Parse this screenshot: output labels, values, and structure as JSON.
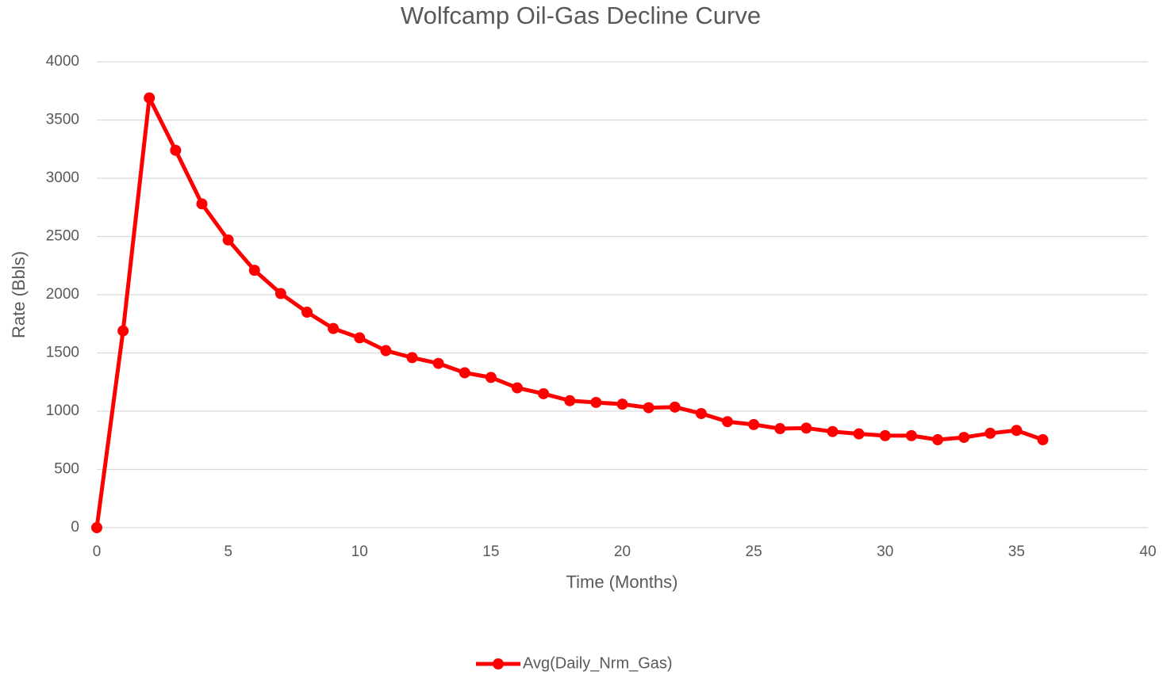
{
  "chart_data": {
    "type": "line",
    "title": "Wolfcamp Oil-Gas Decline Curve",
    "x_label": "Time (Months)",
    "y_label": "Rate (Bbls)",
    "x": [
      0,
      1,
      2,
      3,
      4,
      5,
      6,
      7,
      8,
      9,
      10,
      11,
      12,
      13,
      14,
      15,
      16,
      17,
      18,
      19,
      20,
      21,
      22,
      23,
      24,
      25,
      26,
      27,
      28,
      29,
      30,
      31,
      32,
      33,
      34,
      35,
      36
    ],
    "series": [
      {
        "name": "Avg(Daily_Nrm_Gas)",
        "color": "#ff0000",
        "values": [
          0,
          1690,
          3690,
          3240,
          2780,
          2470,
          2210,
          2010,
          1850,
          1710,
          1630,
          1520,
          1460,
          1410,
          1330,
          1290,
          1200,
          1150,
          1090,
          1075,
          1060,
          1030,
          1035,
          980,
          910,
          885,
          850,
          855,
          825,
          805,
          790,
          790,
          755,
          775,
          810,
          835,
          755
        ]
      }
    ],
    "xlim": [
      0,
      40
    ],
    "xticks": [
      0,
      5,
      10,
      15,
      20,
      25,
      30,
      35,
      40
    ],
    "ylim": [
      0,
      4000
    ],
    "yticks": [
      0,
      500,
      1000,
      1500,
      2000,
      2500,
      3000,
      3500,
      4000
    ],
    "grid": true,
    "legend": "bottom"
  }
}
